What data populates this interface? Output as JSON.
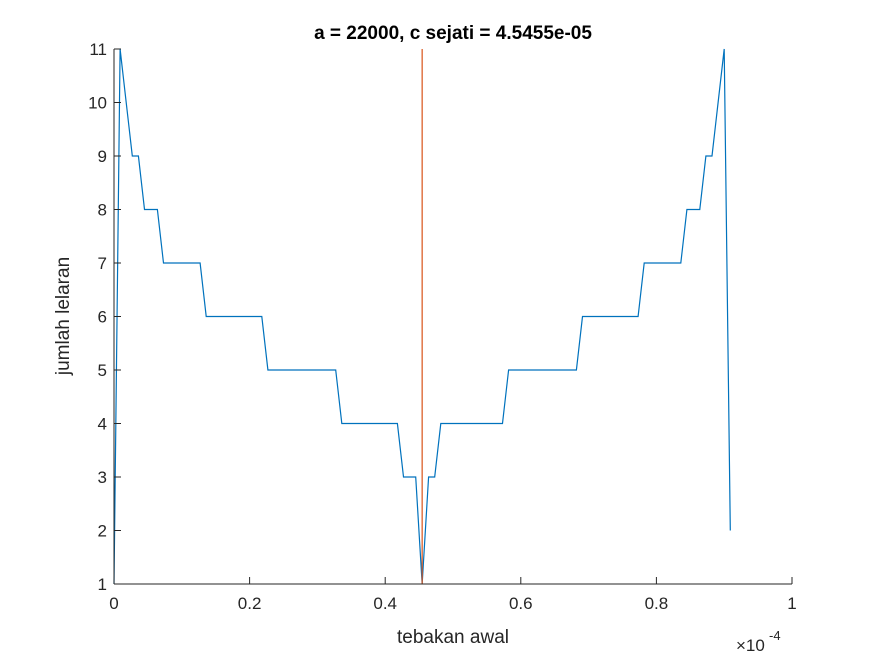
{
  "chart_data": {
    "type": "line",
    "title": "a = 22000, c sejati = 4.5455e-05",
    "xlabel": "tebakan awal",
    "ylabel": "jumlah lelaran",
    "x_exponent_label": "×10",
    "x_exponent_power": "-4",
    "xlim": [
      0,
      1
    ],
    "ylim": [
      1,
      11
    ],
    "x_ticks": [
      0,
      0.2,
      0.4,
      0.6,
      0.8,
      1
    ],
    "x_tick_labels": [
      "0",
      "0.2",
      "0.4",
      "0.6",
      "0.8",
      "1"
    ],
    "y_ticks": [
      1,
      2,
      3,
      4,
      5,
      6,
      7,
      8,
      9,
      10,
      11
    ],
    "y_tick_labels": [
      "1",
      "2",
      "3",
      "4",
      "5",
      "6",
      "7",
      "8",
      "9",
      "10",
      "11"
    ],
    "grid": false,
    "series": [
      {
        "color": "#0072BD",
        "x": [
          0,
          0.009,
          0.018,
          0.027,
          0.036,
          0.045,
          0.054,
          0.064,
          0.073,
          0.082,
          0.127,
          0.136,
          0.218,
          0.227,
          0.327,
          0.336,
          0.418,
          0.427,
          0.445,
          0.4545,
          0.464,
          0.473,
          0.482,
          0.491,
          0.573,
          0.582,
          0.682,
          0.691,
          0.773,
          0.782,
          0.836,
          0.845,
          0.864,
          0.873,
          0.882,
          0.891,
          0.9,
          0.909
        ],
        "y": [
          1,
          11,
          10,
          9,
          9,
          8,
          8,
          8,
          7,
          7,
          7,
          6,
          6,
          5,
          5,
          4,
          4,
          3,
          3,
          1,
          3,
          3,
          4,
          4,
          4,
          5,
          5,
          6,
          6,
          7,
          7,
          8,
          8,
          9,
          9,
          10,
          11,
          2
        ]
      },
      {
        "color": "#D95319",
        "x": [
          0.4545,
          0.4545
        ],
        "y": [
          1,
          11
        ]
      }
    ]
  }
}
